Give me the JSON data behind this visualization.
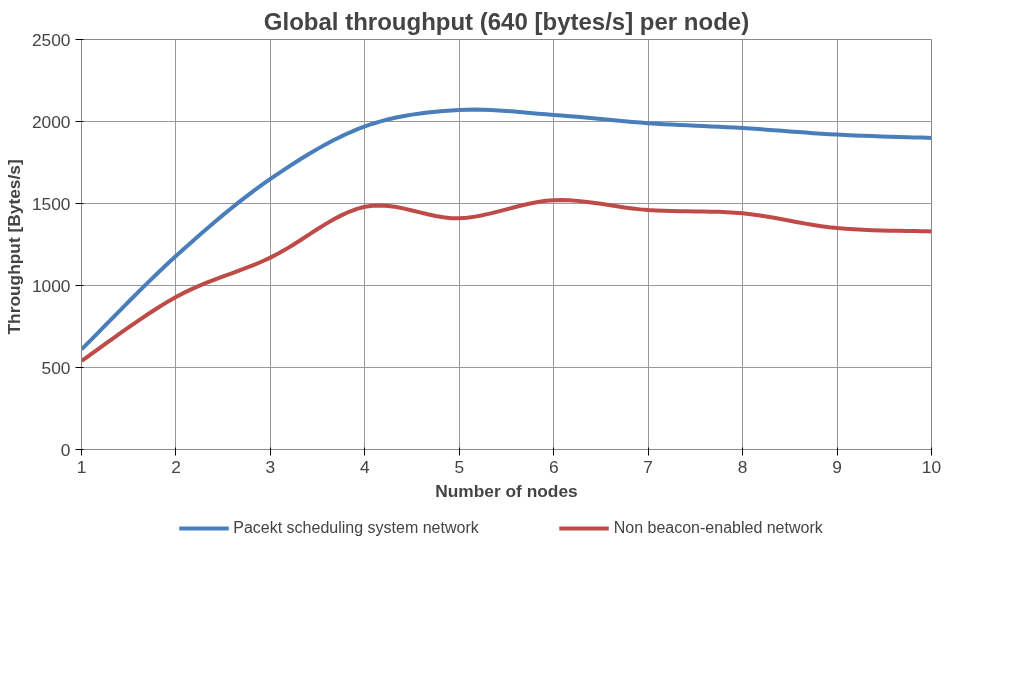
{
  "chart_data": {
    "type": "line",
    "title": "Global throughput (640 [bytes/s] per node)",
    "xlabel": "Number of nodes",
    "ylabel": "Throughput  [Bytes/s]",
    "x": [
      1,
      2,
      3,
      4,
      5,
      6,
      7,
      8,
      9,
      10
    ],
    "series": [
      {
        "name": "Pacekt scheduling system network",
        "color": "#4a7ebb",
        "values": [
          610,
          1180,
          1650,
          1970,
          2070,
          2040,
          1990,
          1960,
          1920,
          1900
        ]
      },
      {
        "name": "Non beacon-enabled network",
        "color": "#be4b48",
        "values": [
          540,
          930,
          1170,
          1480,
          1410,
          1520,
          1460,
          1440,
          1350,
          1330
        ]
      }
    ],
    "xlim": [
      1,
      10
    ],
    "xticks": [
      1,
      2,
      3,
      4,
      5,
      6,
      7,
      8,
      9,
      10
    ],
    "ylim": [
      0,
      2500
    ],
    "yticks": [
      0,
      500,
      1000,
      1500,
      2000,
      2500
    ],
    "grid": true,
    "legend": "bottom",
    "marker": "none",
    "line_style": "solid"
  }
}
